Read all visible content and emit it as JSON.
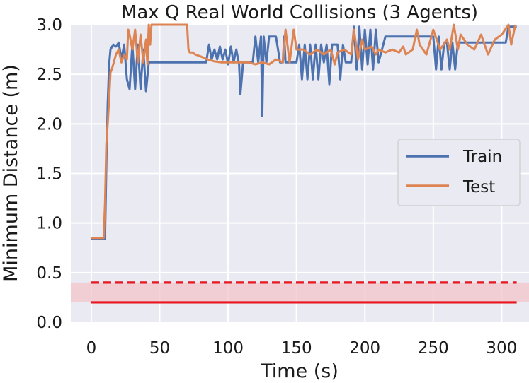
{
  "chart_data": {
    "type": "line",
    "title": "Max Q Real World Collisions (3 Agents)",
    "xlabel": "Time (s)",
    "ylabel": "Minimum Distance (m)",
    "xlim": [
      -15,
      320
    ],
    "ylim": [
      0.0,
      3.0
    ],
    "xticks": [
      0,
      50,
      100,
      150,
      200,
      250,
      300
    ],
    "yticks": [
      0.0,
      0.5,
      1.0,
      1.5,
      2.0,
      2.5,
      3.0
    ],
    "xtick_labels": [
      "0",
      "50",
      "100",
      "150",
      "200",
      "250",
      "300"
    ],
    "ytick_labels": [
      "0.0",
      "0.5",
      "1.0",
      "1.5",
      "2.0",
      "2.5",
      "3.0"
    ],
    "grid": true,
    "legend_position": "center-right",
    "series": [
      {
        "name": "Train",
        "color": "#4c72b0",
        "x": [
          0,
          4,
          7,
          10,
          11,
          12,
          13,
          14,
          16,
          18,
          20,
          22,
          24,
          26,
          28,
          30,
          32,
          34,
          36,
          38,
          40,
          42,
          45,
          50,
          60,
          70,
          75,
          80,
          84,
          86,
          88,
          90,
          92,
          94,
          96,
          98,
          100,
          102,
          104,
          106,
          108,
          109,
          111,
          113,
          115,
          117,
          118,
          120,
          122,
          124,
          125,
          126,
          128,
          130,
          132,
          135,
          138,
          140,
          141,
          142,
          145,
          150,
          152,
          154,
          156,
          158,
          160,
          162,
          164,
          166,
          168,
          170,
          172,
          174,
          176,
          180,
          182,
          184,
          186,
          188,
          190,
          192,
          194,
          196,
          198,
          200,
          202,
          204,
          206,
          208,
          210,
          215,
          220,
          225,
          230,
          240,
          250,
          252,
          254,
          256,
          258,
          260,
          262,
          264,
          266,
          268,
          270,
          280,
          290,
          300,
          303,
          305,
          308,
          311
        ],
        "y": [
          0.84,
          0.84,
          0.84,
          0.84,
          1.6,
          2.2,
          2.6,
          2.75,
          2.8,
          2.78,
          2.82,
          2.65,
          2.8,
          2.45,
          2.35,
          2.8,
          2.35,
          2.8,
          2.35,
          2.75,
          2.33,
          2.62,
          2.62,
          2.62,
          2.62,
          2.62,
          2.62,
          2.62,
          2.62,
          2.8,
          2.65,
          2.75,
          2.65,
          2.78,
          2.65,
          2.75,
          2.6,
          2.78,
          2.62,
          2.75,
          2.6,
          2.3,
          2.62,
          2.62,
          2.62,
          2.62,
          2.62,
          2.88,
          2.62,
          2.88,
          2.08,
          2.88,
          2.62,
          2.88,
          2.88,
          2.88,
          2.62,
          2.62,
          2.88,
          2.62,
          2.62,
          2.62,
          2.8,
          2.45,
          2.8,
          2.45,
          2.8,
          2.45,
          2.8,
          2.45,
          2.8,
          2.62,
          2.8,
          2.4,
          2.8,
          2.8,
          2.45,
          2.8,
          2.62,
          2.62,
          2.62,
          2.98,
          2.55,
          2.98,
          2.55,
          2.95,
          2.6,
          2.95,
          2.55,
          2.95,
          2.62,
          2.88,
          2.88,
          2.88,
          2.88,
          2.88,
          2.88,
          2.55,
          2.88,
          2.55,
          2.82,
          2.82,
          2.55,
          2.82,
          2.55,
          2.82,
          2.82,
          2.82,
          2.82,
          2.82,
          2.82,
          2.98,
          2.98,
          2.98
        ]
      },
      {
        "name": "Test",
        "color": "#dd8452",
        "x": [
          0,
          4,
          7,
          9,
          10,
          11,
          12,
          13,
          14,
          15,
          16,
          17,
          18,
          20,
          22,
          24,
          26,
          27,
          28,
          30,
          32,
          34,
          36,
          38,
          40,
          41,
          42,
          43,
          44,
          46,
          48,
          50,
          52,
          54,
          56,
          58,
          60,
          62,
          64,
          66,
          68,
          70,
          71,
          72,
          74,
          76,
          80,
          85,
          90,
          95,
          100,
          105,
          110,
          115,
          120,
          125,
          130,
          135,
          140,
          142,
          145,
          148,
          150,
          155,
          160,
          165,
          170,
          175,
          178,
          180,
          185,
          190,
          192,
          195,
          198,
          200,
          205,
          208,
          210,
          215,
          220,
          225,
          228,
          230,
          235,
          238,
          240,
          245,
          250,
          255,
          260,
          262,
          265,
          268,
          270,
          275,
          280,
          285,
          290,
          295,
          300,
          305,
          307,
          310
        ],
        "y": [
          0.85,
          0.85,
          0.85,
          0.85,
          1.2,
          1.8,
          2.0,
          2.25,
          2.52,
          2.55,
          2.6,
          2.65,
          2.7,
          2.75,
          2.62,
          2.7,
          2.65,
          2.95,
          2.9,
          2.75,
          2.95,
          2.62,
          2.9,
          2.62,
          2.85,
          2.6,
          3.0,
          2.8,
          3.0,
          3.0,
          3.0,
          3.0,
          3.0,
          3.0,
          3.0,
          3.0,
          3.0,
          3.0,
          3.0,
          3.0,
          3.0,
          3.0,
          2.75,
          2.72,
          2.72,
          2.7,
          2.68,
          2.65,
          2.63,
          2.62,
          2.62,
          2.62,
          2.62,
          2.62,
          2.6,
          2.62,
          2.6,
          2.65,
          2.62,
          2.95,
          2.62,
          2.95,
          2.75,
          2.75,
          2.7,
          2.75,
          2.7,
          2.75,
          2.6,
          2.72,
          2.75,
          2.7,
          2.95,
          2.65,
          2.85,
          2.75,
          2.78,
          2.7,
          2.75,
          2.72,
          2.75,
          2.72,
          2.78,
          2.7,
          2.75,
          2.95,
          2.8,
          2.7,
          2.95,
          2.75,
          2.85,
          2.75,
          3.0,
          2.75,
          2.9,
          2.8,
          2.75,
          2.9,
          2.7,
          2.85,
          2.9,
          3.0,
          2.8,
          3.0
        ]
      }
    ],
    "references": [
      {
        "style": "solid",
        "color": "#e8161e",
        "y": 0.2,
        "x": [
          0,
          311
        ]
      },
      {
        "style": "dashed",
        "color": "#e8161e",
        "y": 0.4,
        "x": [
          0,
          311
        ]
      }
    ],
    "band": {
      "color": "#f2c4ca",
      "y": [
        0.2,
        0.4
      ]
    },
    "background": "#eaeaf2"
  }
}
